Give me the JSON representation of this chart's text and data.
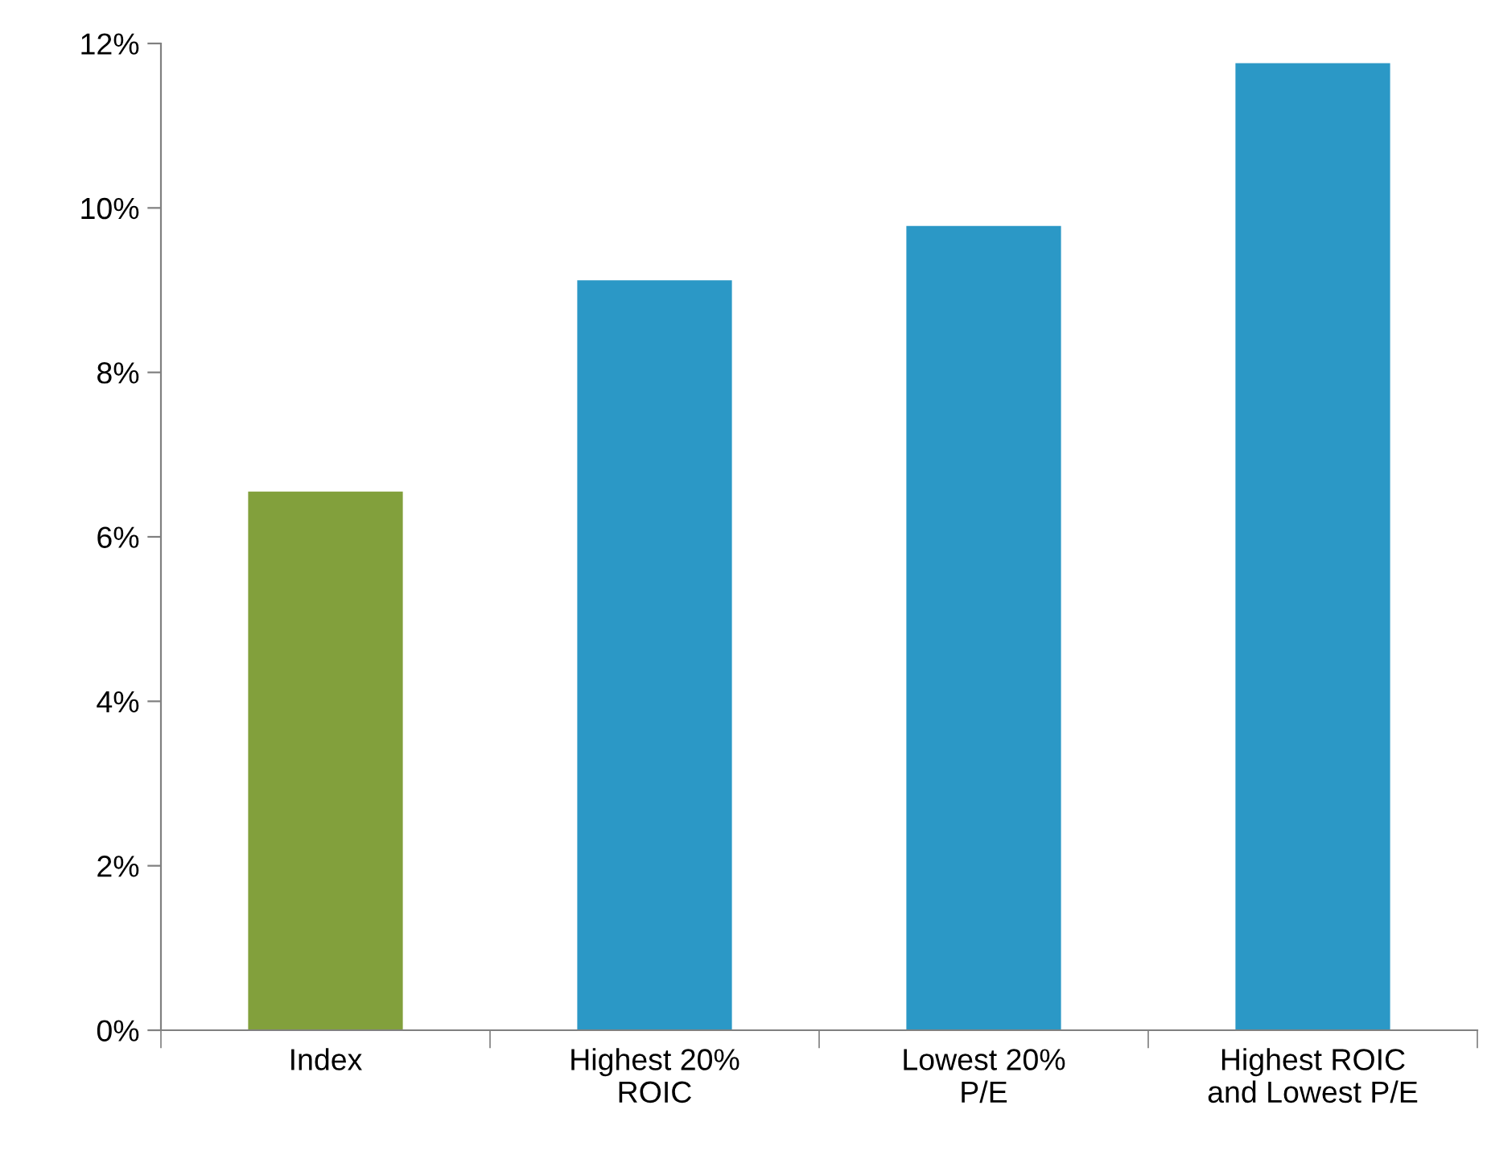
{
  "chart_data": {
    "type": "bar",
    "categories": [
      "Index",
      "Highest 20%\nROIC",
      "Lowest 20%\nP/E",
      "Highest ROIC\nand Lowest P/E"
    ],
    "values": [
      6.55,
      9.12,
      9.78,
      11.76
    ],
    "colors": [
      "#82a03c",
      "#2b98c6",
      "#2b98c6",
      "#2b98c6"
    ],
    "ylim": [
      0,
      12
    ],
    "yticks": [
      {
        "value": 0,
        "label": "0%"
      },
      {
        "value": 2,
        "label": "2%"
      },
      {
        "value": 4,
        "label": "4%"
      },
      {
        "value": 6,
        "label": "6%"
      },
      {
        "value": 8,
        "label": "8%"
      },
      {
        "value": 10,
        "label": "10%"
      },
      {
        "value": 12,
        "label": "12%"
      }
    ],
    "grid": false,
    "legend": false
  }
}
